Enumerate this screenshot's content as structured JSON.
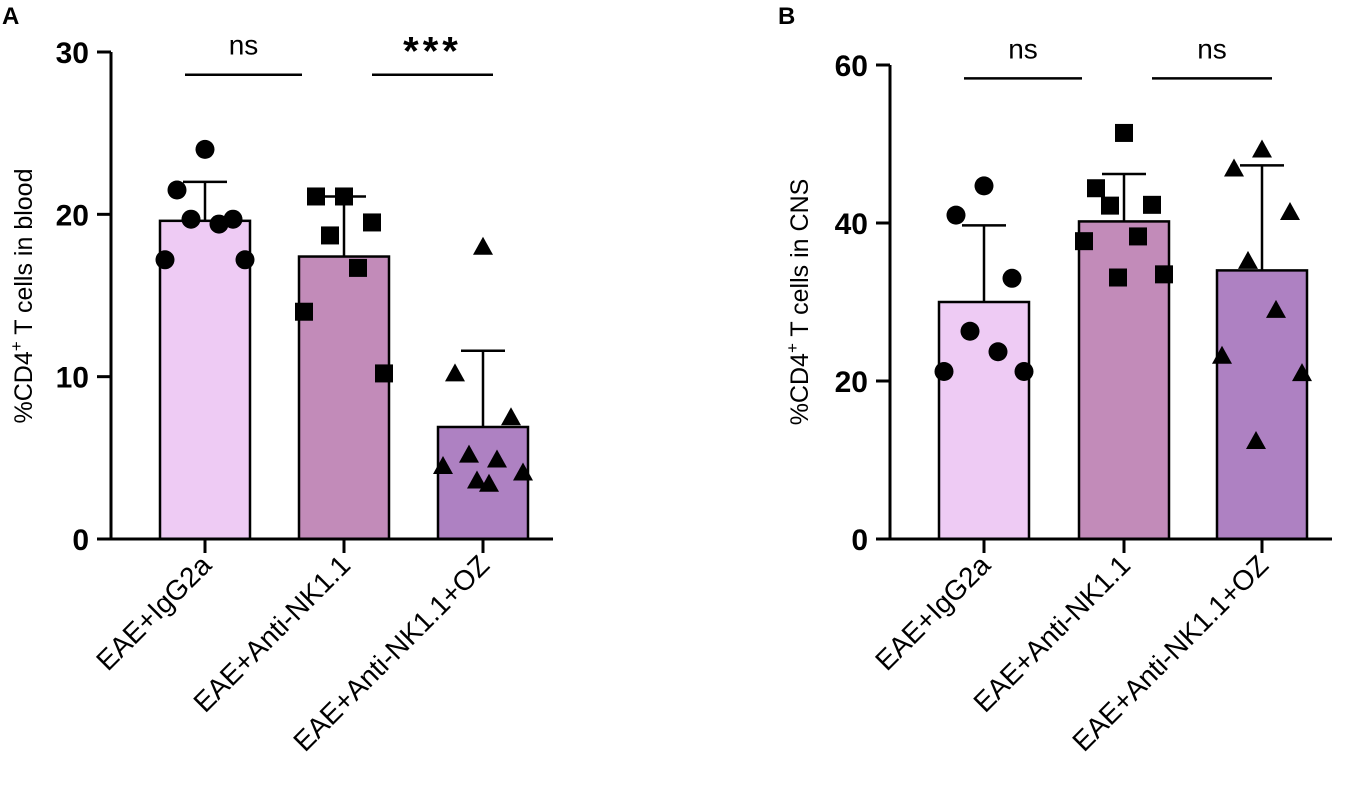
{
  "chart_data": [
    {
      "panel": "A",
      "type": "bar",
      "ylabel": "%CD4⁺ T cells in blood",
      "ylim": [
        0,
        30
      ],
      "yticks": [
        0,
        10,
        20,
        30
      ],
      "categories": [
        "EAE+IgG2a",
        "EAE+Anti-NK1.1",
        "EAE+Anti-NK1.1+OZ"
      ],
      "values": [
        19.6,
        17.4,
        6.9
      ],
      "errors": [
        2.4,
        3.7,
        4.7
      ],
      "colors": [
        "#eecbf4",
        "#c28bb9",
        "#ae81c2"
      ],
      "markers": [
        "circle",
        "square",
        "triangle"
      ],
      "points": [
        [
          24.0,
          21.5,
          19.7,
          19.7,
          19.4,
          17.2,
          17.2
        ],
        [
          21.1,
          21.1,
          19.5,
          18.7,
          16.7,
          14.0,
          10.2
        ],
        [
          18.0,
          10.2,
          7.5,
          5.2,
          4.9,
          4.5,
          4.1,
          3.6,
          3.4
        ]
      ],
      "comparisons": [
        {
          "from": 0,
          "to": 1,
          "label": "ns",
          "y": 28.6
        },
        {
          "from": 1,
          "to": 2,
          "label": "***",
          "y": 28.6
        }
      ]
    },
    {
      "panel": "B",
      "type": "bar",
      "ylabel": "%CD4⁺ T cells in CNS",
      "ylim": [
        0,
        60
      ],
      "yticks": [
        0,
        20,
        40,
        60
      ],
      "categories": [
        "EAE+IgG2a",
        "EAE+Anti-NK1.1",
        "EAE+Anti-NK1.1+OZ"
      ],
      "values": [
        30.0,
        40.2,
        34.0
      ],
      "errors": [
        9.7,
        6.0,
        13.3
      ],
      "colors": [
        "#eecbf4",
        "#c28bb9",
        "#ae81c2"
      ],
      "markers": [
        "circle",
        "square",
        "triangle"
      ],
      "points": [
        [
          44.7,
          41.0,
          33.0,
          26.3,
          23.7,
          21.2,
          21.2
        ],
        [
          51.4,
          44.4,
          42.3,
          42.2,
          38.3,
          37.7,
          33.5,
          33.1
        ],
        [
          49.3,
          46.9,
          41.4,
          35.2,
          29.0,
          23.2,
          21.0,
          12.4
        ]
      ],
      "comparisons": [
        {
          "from": 0,
          "to": 1,
          "label": "ns",
          "y": 58.3
        },
        {
          "from": 1,
          "to": 2,
          "label": "ns",
          "y": 58.3
        }
      ]
    }
  ]
}
